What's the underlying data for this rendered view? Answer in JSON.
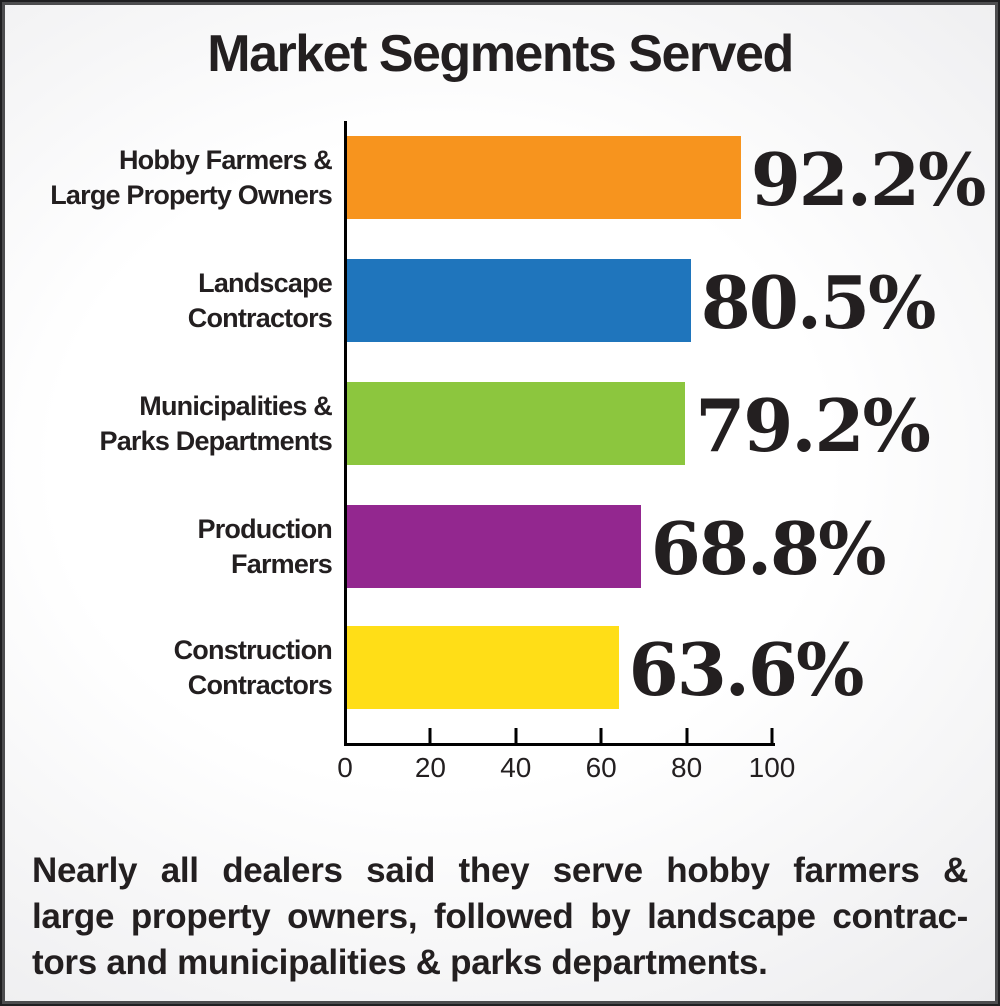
{
  "chart_data": {
    "type": "bar",
    "orientation": "horizontal",
    "title": "Market Segments Served",
    "categories": [
      "Hobby Farmers & Large Property Owners",
      "Landscape Contractors",
      "Municipalities & Parks Departments",
      "Production Farmers",
      "Construction Contractors"
    ],
    "label_lines": [
      [
        "Hobby Farmers &",
        "Large Property Owners"
      ],
      [
        "Landscape",
        "Contractors"
      ],
      [
        "Municipalities &",
        "Parks Departments"
      ],
      [
        "Production",
        "Farmers"
      ],
      [
        "Construction",
        "Contractors"
      ]
    ],
    "values": [
      92.2,
      80.5,
      79.2,
      68.8,
      63.6
    ],
    "value_labels": [
      "92.2%",
      "80.5%",
      "79.2%",
      "68.8%",
      "63.6%"
    ],
    "bar_colors": [
      "#F7941E",
      "#1F75BC",
      "#8CC63E",
      "#93278F",
      "#FFDE17"
    ],
    "xlabel": "",
    "ylabel": "",
    "xlim": [
      0,
      100
    ],
    "x_ticks": [
      "0",
      "20",
      "40",
      "60",
      "80",
      "100"
    ],
    "grid": false,
    "legend": false
  },
  "caption": {
    "lines": [
      "Nearly all dealers said they serve hobby farmers &",
      "large property owners, followed by landscape contrac-",
      "tors and municipalities & parks departments."
    ],
    "full_text": "Nearly all dealers said they serve hobby farmers & large property owners, followed by landscape contractors and municipalities & parks departments."
  },
  "colors": {
    "text": "#231F20",
    "axis": "#000000",
    "frame_border": "#3b3b3d"
  }
}
